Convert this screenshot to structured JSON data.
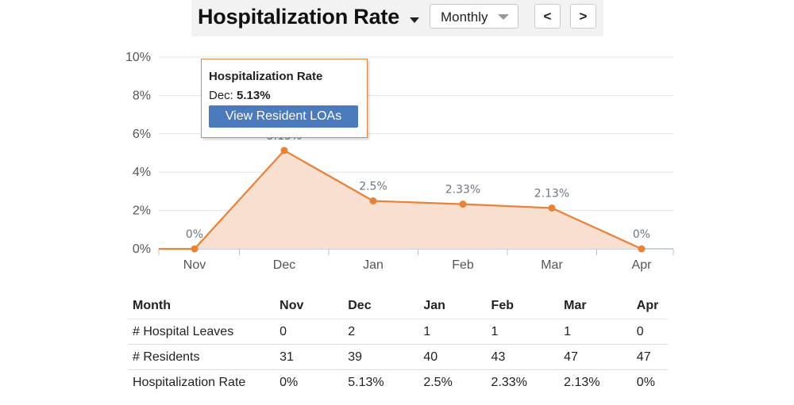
{
  "header": {
    "title": "Hospitalization Rate",
    "period": "Monthly",
    "prev_label": "<",
    "next_label": ">"
  },
  "tooltip": {
    "title": "Hospitalization Rate",
    "month": "Dec:",
    "value": "5.13%",
    "button_label": "View Resident LOAs"
  },
  "chart_data": {
    "type": "area",
    "title": "",
    "xlabel": "",
    "ylabel": "",
    "categories": [
      "Nov",
      "Dec",
      "Jan",
      "Feb",
      "Mar",
      "Apr"
    ],
    "series": [
      {
        "values": [
          0,
          5.13,
          2.5,
          2.33,
          2.13,
          0
        ],
        "labels": [
          "0%",
          "5.13%",
          "2.5%",
          "2.33%",
          "2.13%",
          "0%"
        ],
        "color": "#e8813a",
        "fill": "#f8dfd0"
      }
    ],
    "ylim": [
      0,
      10
    ],
    "yticks": [
      0,
      2,
      4,
      6,
      8,
      10
    ],
    "ytick_labels": [
      "0%",
      "2%",
      "4%",
      "6%",
      "8%",
      "10%"
    ],
    "grid": true,
    "legend": "none"
  },
  "table": {
    "header": [
      "Month",
      "Nov",
      "Dec",
      "Jan",
      "Feb",
      "Mar",
      "Apr"
    ],
    "rows": [
      [
        "# Hospital Leaves",
        "0",
        "2",
        "1",
        "1",
        "1",
        "0"
      ],
      [
        "# Residents",
        "31",
        "39",
        "40",
        "43",
        "47",
        "47"
      ],
      [
        "Hospitalization Rate",
        "0%",
        "5.13%",
        "2.5%",
        "2.33%",
        "2.13%",
        "0%"
      ]
    ]
  }
}
